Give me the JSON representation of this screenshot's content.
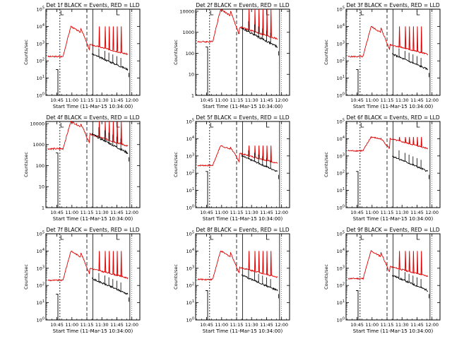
{
  "figure": {
    "xlabel": "Start Time (11-Mar-15 10:34:00)",
    "ylabel": "Counts/sec",
    "colors": {
      "events": "#000000",
      "lld": "#e00000",
      "axes": "#000000",
      "background": "#ffffff"
    }
  },
  "chart_data": [
    {
      "type": "line",
      "title": "Det 1f BLACK = Events, RED = LLD",
      "x_ticks": [
        "10:45",
        "11:00",
        "11:15",
        "11:30",
        "11:45",
        "12:00"
      ],
      "y_scale": "log",
      "y_ticks": [
        "10^0",
        "10^1",
        "10^2",
        "10^3",
        "10^4",
        "10^5"
      ],
      "ylim_exp": [
        0,
        5
      ],
      "series": [
        {
          "name": "Events",
          "color": "#000000",
          "level_exp": 1.5
        },
        {
          "name": "LLD",
          "color": "#e00000",
          "level_exp": 2.25,
          "peak_exp": 4.0
        }
      ]
    },
    {
      "type": "line",
      "title": "Det 2f BLACK = Events, RED = LLD",
      "x_ticks": [
        "10:45",
        "11:00",
        "11:15",
        "11:30",
        "11:45",
        "12:00"
      ],
      "y_scale": "log",
      "y_ticks": [
        "1",
        "10",
        "100",
        "1000",
        "10000"
      ],
      "ylim_exp": [
        0,
        4.1
      ],
      "series": [
        {
          "name": "Events",
          "color": "#000000",
          "level_exp": 2.3
        },
        {
          "name": "LLD",
          "color": "#e00000",
          "level_exp": 2.55,
          "peak_exp": 4.1
        }
      ]
    },
    {
      "type": "line",
      "title": "Det 3f BLACK = Events, RED = LLD",
      "x_ticks": [
        "10:45",
        "11:00",
        "11:15",
        "11:30",
        "11:45",
        "12:00"
      ],
      "y_scale": "log",
      "y_ticks": [
        "10^0",
        "10^1",
        "10^2",
        "10^3",
        "10^4",
        "10^5"
      ],
      "ylim_exp": [
        0,
        5
      ],
      "series": [
        {
          "name": "Events",
          "color": "#000000",
          "level_exp": 1.5
        },
        {
          "name": "LLD",
          "color": "#e00000",
          "level_exp": 2.25,
          "peak_exp": 4.0
        }
      ]
    },
    {
      "type": "line",
      "title": "Det 4f BLACK = Events, RED = LLD",
      "x_ticks": [
        "10:45",
        "11:00",
        "11:15",
        "11:30",
        "11:45",
        "12:00"
      ],
      "y_scale": "log",
      "y_ticks": [
        "1",
        "10",
        "100",
        "1000",
        "10000"
      ],
      "ylim_exp": [
        0,
        4.1
      ],
      "series": [
        {
          "name": "Events",
          "color": "#000000",
          "level_exp": 2.6
        },
        {
          "name": "LLD",
          "color": "#e00000",
          "level_exp": 2.8,
          "peak_exp": 4.1
        }
      ]
    },
    {
      "type": "line",
      "title": "Det 5f BLACK = Events, RED = LLD",
      "x_ticks": [
        "10:45",
        "11:00",
        "11:15",
        "11:30",
        "11:45",
        "12:00"
      ],
      "y_scale": "log",
      "y_ticks": [
        "10^0",
        "10^1",
        "10^2",
        "10^3",
        "10^4",
        "10^5"
      ],
      "ylim_exp": [
        0,
        5
      ],
      "series": [
        {
          "name": "Events",
          "color": "#000000",
          "level_exp": 2.1
        },
        {
          "name": "LLD",
          "color": "#e00000",
          "level_exp": 2.45,
          "peak_exp": 3.6
        }
      ]
    },
    {
      "type": "line",
      "title": "Det 6f BLACK = Events, RED = LLD",
      "x_ticks": [
        "10:45",
        "11:00",
        "11:15",
        "11:30",
        "11:45",
        "12:00"
      ],
      "y_scale": "log",
      "y_ticks": [
        "10^0",
        "10^1",
        "10^2",
        "10^3",
        "10^4",
        "10^5"
      ],
      "ylim_exp": [
        0,
        5
      ],
      "series": [
        {
          "name": "Events",
          "color": "#000000",
          "level_exp": 2.1
        },
        {
          "name": "LLD",
          "color": "#e00000",
          "level_exp": 3.3,
          "peak_exp": 4.1
        }
      ]
    },
    {
      "type": "line",
      "title": "Det 7f BLACK = Events, RED = LLD",
      "x_ticks": [
        "10:45",
        "11:00",
        "11:15",
        "11:30",
        "11:45",
        "12:00"
      ],
      "y_scale": "log",
      "y_ticks": [
        "10^0",
        "10^1",
        "10^2",
        "10^3",
        "10^4",
        "10^5"
      ],
      "ylim_exp": [
        0,
        5
      ],
      "series": [
        {
          "name": "Events",
          "color": "#000000",
          "level_exp": 1.5
        },
        {
          "name": "LLD",
          "color": "#e00000",
          "level_exp": 2.3,
          "peak_exp": 4.0
        }
      ]
    },
    {
      "type": "line",
      "title": "Det 8f BLACK = Events, RED = LLD",
      "x_ticks": [
        "10:45",
        "11:00",
        "11:15",
        "11:30",
        "11:45",
        "12:00"
      ],
      "y_scale": "log",
      "y_ticks": [
        "10^0",
        "10^1",
        "10^2",
        "10^3",
        "10^4",
        "10^5"
      ],
      "ylim_exp": [
        0,
        5
      ],
      "series": [
        {
          "name": "Events",
          "color": "#000000",
          "level_exp": 1.7
        },
        {
          "name": "LLD",
          "color": "#e00000",
          "level_exp": 2.35,
          "peak_exp": 4.0
        }
      ]
    },
    {
      "type": "line",
      "title": "Det 9f BLACK = Events, RED = LLD",
      "x_ticks": [
        "10:45",
        "11:00",
        "11:15",
        "11:30",
        "11:45",
        "12:00"
      ],
      "y_scale": "log",
      "y_ticks": [
        "10^0",
        "10^1",
        "10^2",
        "10^3",
        "10^4",
        "10^5"
      ],
      "ylim_exp": [
        0,
        5
      ],
      "series": [
        {
          "name": "Events",
          "color": "#000000",
          "level_exp": 1.7
        },
        {
          "name": "LLD",
          "color": "#e00000",
          "level_exp": 2.4,
          "peak_exp": 4.0
        }
      ]
    }
  ]
}
